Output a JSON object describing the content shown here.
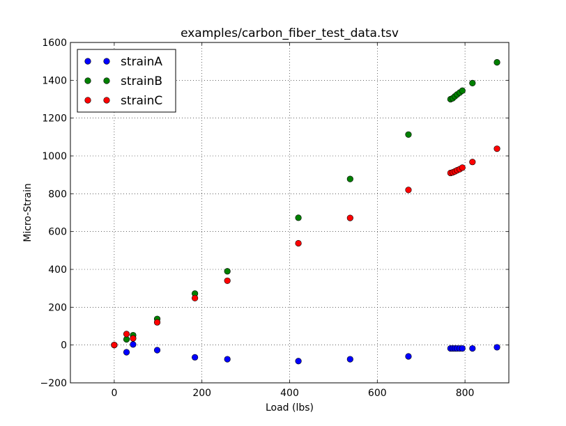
{
  "chart_data": {
    "type": "scatter",
    "title": "examples/carbon_fiber_test_data.tsv",
    "xlabel": "Load (lbs)",
    "ylabel": "Micro-Strain",
    "xlim": [
      -100,
      900
    ],
    "ylim": [
      -200,
      1600
    ],
    "xticks": [
      0,
      200,
      400,
      600,
      800
    ],
    "xtick_labels": [
      "0",
      "200",
      "400",
      "600",
      "800"
    ],
    "yticks": [
      -200,
      0,
      200,
      400,
      600,
      800,
      1000,
      1200,
      1400,
      1600
    ],
    "ytick_labels": [
      "−200",
      "0",
      "200",
      "400",
      "600",
      "800",
      "1000",
      "1200",
      "1400",
      "1600"
    ],
    "grid": true,
    "legend_position": "top-left",
    "series": [
      {
        "name": "strainA",
        "color": "#0000ff",
        "x": [
          0,
          28,
          43,
          98,
          184,
          258,
          420,
          538,
          671,
          767,
          772,
          777,
          782,
          788,
          794,
          817,
          873
        ],
        "y": [
          0,
          -38,
          3,
          -27,
          -65,
          -75,
          -85,
          -75,
          -60,
          -18,
          -18,
          -18,
          -18,
          -18,
          -18,
          -18,
          -12
        ]
      },
      {
        "name": "strainB",
        "color": "#008000",
        "x": [
          0,
          28,
          43,
          98,
          184,
          258,
          420,
          538,
          671,
          767,
          772,
          777,
          782,
          788,
          794,
          817,
          873
        ],
        "y": [
          0,
          30,
          52,
          138,
          272,
          390,
          673,
          878,
          1113,
          1300,
          1305,
          1315,
          1325,
          1335,
          1345,
          1385,
          1495
        ]
      },
      {
        "name": "strainC",
        "color": "#ff0000",
        "x": [
          0,
          28,
          43,
          98,
          184,
          258,
          420,
          538,
          671,
          767,
          772,
          777,
          782,
          788,
          794,
          817,
          873
        ],
        "y": [
          0,
          58,
          35,
          120,
          248,
          340,
          538,
          672,
          820,
          910,
          913,
          918,
          924,
          930,
          938,
          968,
          1038
        ]
      }
    ]
  }
}
